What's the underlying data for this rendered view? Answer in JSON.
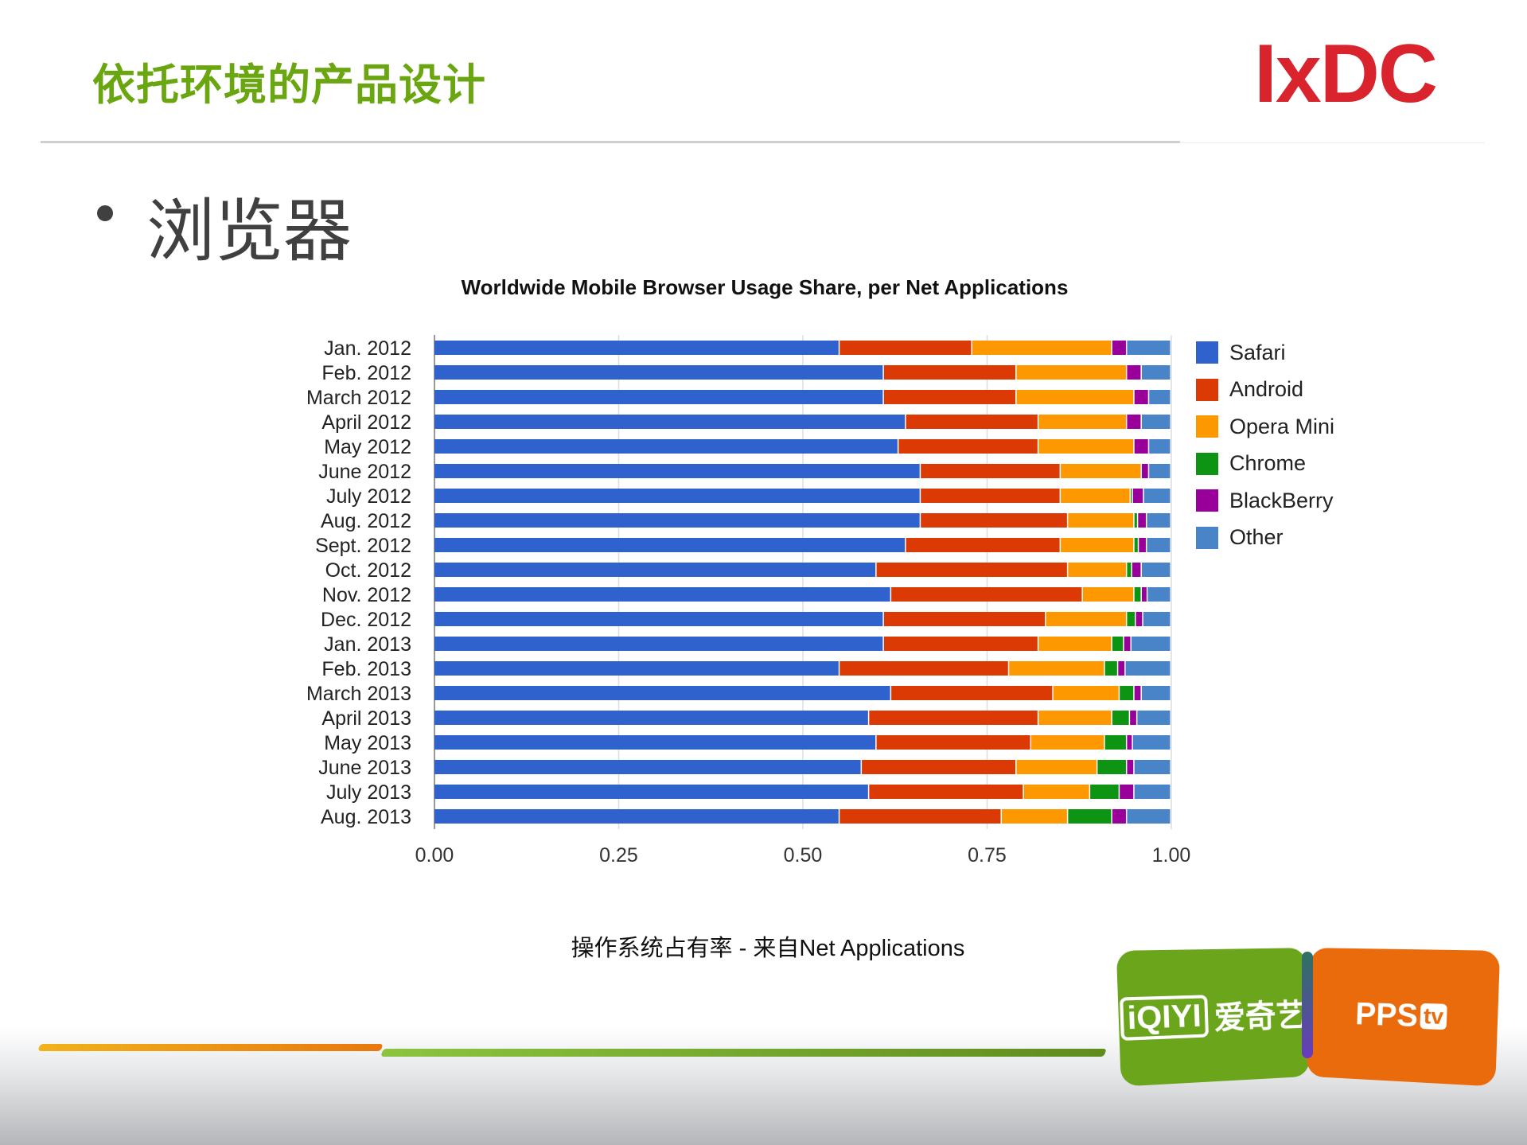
{
  "slide": {
    "title": "依托环境的产品设计",
    "logo_text": "IxDC",
    "bullet": "浏览器",
    "caption": "操作系统占有率 - 来自Net Applications",
    "partner_logos": {
      "left_mark": "iQIYI",
      "left_name": "爱奇艺",
      "right_mark": "PPS",
      "right_suffix": "tv"
    },
    "colors": {
      "title": "#6aa60f",
      "logo": "#d9232d"
    }
  },
  "chart_data": {
    "type": "bar",
    "orientation": "horizontal",
    "stacked": true,
    "title": "Worldwide Mobile Browser Usage Share, per Net Applications",
    "xlabel": "",
    "ylabel": "",
    "xlim": [
      0,
      1
    ],
    "xticks": [
      "0.00",
      "0.25",
      "0.50",
      "0.75",
      "1.00"
    ],
    "grid": true,
    "legend_position": "right",
    "categories": [
      "Jan. 2012",
      "Feb. 2012",
      "March 2012",
      "April 2012",
      "May 2012",
      "June 2012",
      "July 2012",
      "Aug. 2012",
      "Sept. 2012",
      "Oct. 2012",
      "Nov. 2012",
      "Dec. 2012",
      "Jan. 2013",
      "Feb. 2013",
      "March 2013",
      "April 2013",
      "May 2013",
      "June 2013",
      "July 2013",
      "Aug. 2013"
    ],
    "series": [
      {
        "name": "Safari",
        "color": "#2f62cc",
        "values": [
          0.55,
          0.61,
          0.61,
          0.64,
          0.63,
          0.66,
          0.66,
          0.66,
          0.64,
          0.6,
          0.62,
          0.61,
          0.61,
          0.55,
          0.62,
          0.59,
          0.6,
          0.58,
          0.59,
          0.55
        ]
      },
      {
        "name": "Android",
        "color": "#dc3a05",
        "values": [
          0.18,
          0.18,
          0.18,
          0.18,
          0.19,
          0.19,
          0.19,
          0.2,
          0.21,
          0.26,
          0.26,
          0.22,
          0.21,
          0.23,
          0.22,
          0.23,
          0.21,
          0.21,
          0.21,
          0.22
        ]
      },
      {
        "name": "Opera Mini",
        "color": "#fe9800",
        "values": [
          0.19,
          0.15,
          0.16,
          0.12,
          0.13,
          0.11,
          0.095,
          0.09,
          0.1,
          0.08,
          0.07,
          0.11,
          0.1,
          0.13,
          0.09,
          0.1,
          0.1,
          0.11,
          0.09,
          0.09
        ]
      },
      {
        "name": "Chrome",
        "color": "#0d9412",
        "values": [
          0,
          0,
          0,
          0,
          0,
          0,
          0.003,
          0.005,
          0.006,
          0.007,
          0.01,
          0.012,
          0.016,
          0.018,
          0.02,
          0.024,
          0.03,
          0.04,
          0.04,
          0.06
        ]
      },
      {
        "name": "BlackBerry",
        "color": "#990099",
        "values": [
          0.02,
          0.02,
          0.02,
          0.02,
          0.02,
          0.01,
          0.015,
          0.012,
          0.011,
          0.013,
          0.008,
          0.01,
          0.01,
          0.01,
          0.01,
          0.01,
          0.008,
          0.01,
          0.02,
          0.02
        ]
      },
      {
        "name": "Other",
        "color": "#4a84c8",
        "values": [
          0.06,
          0.04,
          0.03,
          0.04,
          0.03,
          0.03,
          0.037,
          0.033,
          0.033,
          0.04,
          0.032,
          0.038,
          0.054,
          0.062,
          0.04,
          0.046,
          0.052,
          0.05,
          0.05,
          0.06
        ]
      }
    ]
  }
}
